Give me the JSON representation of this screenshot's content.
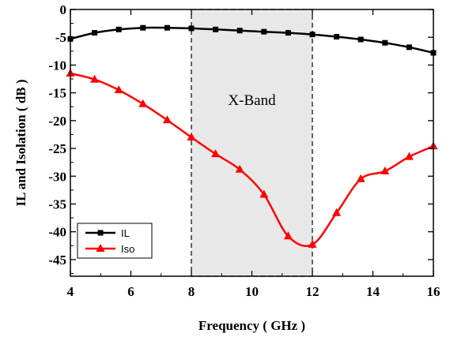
{
  "chart_data": {
    "type": "line",
    "title": "",
    "xlabel": "Frequency ( GHz )",
    "ylabel": "IL and Isolation ( dB )",
    "xlim": [
      4,
      16
    ],
    "ylim": [
      -48,
      0
    ],
    "xticks": [
      4,
      6,
      8,
      10,
      12,
      14,
      16
    ],
    "xtick_labels": [
      "4",
      "6",
      "8",
      "10",
      "12",
      "14",
      "16"
    ],
    "yticks": [
      0,
      -5,
      -10,
      -15,
      -20,
      -25,
      -30,
      -35,
      -40,
      -45
    ],
    "ytick_labels": [
      "0",
      "-5",
      "-10",
      "-15",
      "-20",
      "-25",
      "-30",
      "-35",
      "-40",
      "-45"
    ],
    "grid": false,
    "legend_position": "bottom-left",
    "band": {
      "x_start": 8,
      "x_end": 12,
      "label": "X-Band"
    },
    "series": [
      {
        "name": "IL",
        "color": "#000000",
        "marker": "square",
        "x": [
          4.0,
          4.8,
          5.6,
          6.4,
          7.2,
          8.0,
          8.8,
          9.6,
          10.4,
          11.2,
          12.0,
          12.8,
          13.6,
          14.4,
          15.2,
          16.0
        ],
        "y": [
          -5.3,
          -4.2,
          -3.6,
          -3.3,
          -3.3,
          -3.4,
          -3.6,
          -3.8,
          -4.0,
          -4.2,
          -4.5,
          -4.9,
          -5.4,
          -6.0,
          -6.8,
          -7.8
        ]
      },
      {
        "name": "Iso",
        "color": "#ff0000",
        "marker": "triangle",
        "x": [
          4.0,
          4.8,
          5.6,
          6.4,
          7.2,
          8.0,
          8.8,
          9.6,
          10.4,
          11.2,
          12.0,
          12.8,
          13.6,
          14.4,
          15.2,
          16.0
        ],
        "y": [
          -11.5,
          -12.6,
          -14.5,
          -17.0,
          -19.9,
          -23.0,
          -26.0,
          -28.8,
          -33.3,
          -40.8,
          -42.3,
          -36.6,
          -30.5,
          -29.1,
          -26.5,
          -24.6
        ]
      }
    ]
  }
}
